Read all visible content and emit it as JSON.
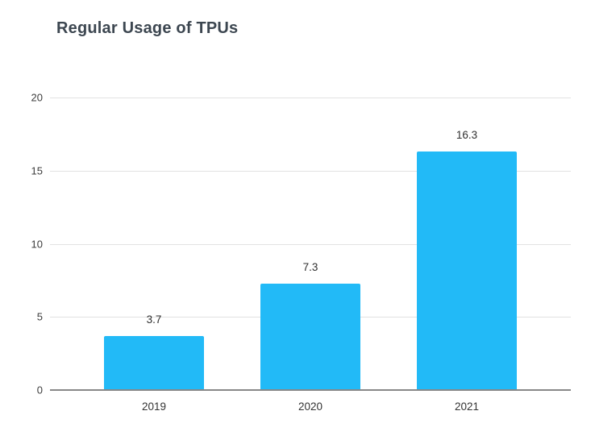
{
  "title": "Regular Usage of TPUs",
  "colors": {
    "bar": "#22BAF7",
    "title_text": "#3C4650",
    "axis_text": "#3C3C3C",
    "gridline": "#E2E2E2",
    "baseline": "#888888",
    "background": "#FFFFFF"
  },
  "chart_data": {
    "type": "bar",
    "title": "Regular Usage of TPUs",
    "categories": [
      "2019",
      "2020",
      "2021"
    ],
    "values": [
      3.7,
      7.3,
      16.3
    ],
    "value_labels": [
      "3.7",
      "7.3",
      "16.3"
    ],
    "xlabel": "",
    "ylabel": "",
    "ylim": [
      0,
      20
    ],
    "y_ticks": [
      0,
      5,
      10,
      15,
      20
    ],
    "grid": true,
    "legend_position": "none"
  }
}
